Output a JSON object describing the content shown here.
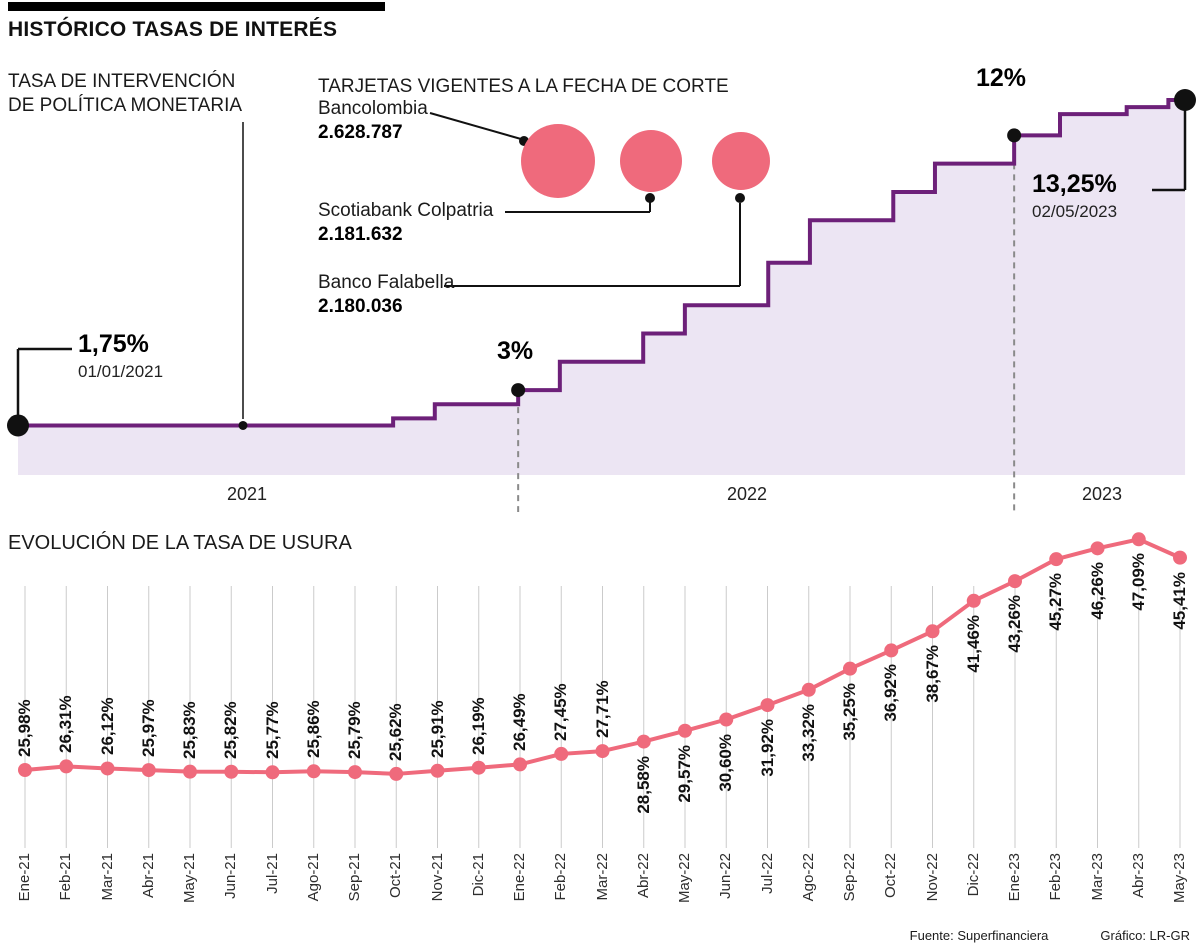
{
  "header": {
    "title": "HISTÓRICO TASAS DE INTERÉS"
  },
  "policy_chart": {
    "title_line1": "TASA DE INTERVENCIÓN",
    "title_line2": "DE POLÍTICA MONETARIA"
  },
  "legend": {
    "title": "TARJETAS VIGENTES A LA FECHA DE CORTE",
    "items": [
      {
        "name": "Bancolombia",
        "value": "2.628.787"
      },
      {
        "name": "Scotiabank Colpatria",
        "value": "2.181.632"
      },
      {
        "name": "Banco Falabella",
        "value": "2.180.036"
      }
    ]
  },
  "usura_chart": {
    "title": "EVOLUCIÓN DE LA TASA DE USURA"
  },
  "footer": {
    "source": "Fuente: Superfinanciera",
    "credit": "Gráfico: LR-GR"
  },
  "chart_data": [
    {
      "type": "area",
      "subtype": "step-line",
      "title": "TASA DE INTERVENCIÓN DE POLÍTICA MONETARIA",
      "unit": "%",
      "ylim": [
        0,
        13.25
      ],
      "x_years": [
        "2021",
        "2022",
        "2023"
      ],
      "steps": [
        {
          "m": 0,
          "rate": 1.75
        },
        {
          "m": 9,
          "rate": 2.0
        },
        {
          "m": 10,
          "rate": 2.5
        },
        {
          "m": 12,
          "rate": 3.0
        },
        {
          "m": 13,
          "rate": 4.0
        },
        {
          "m": 15,
          "rate": 5.0
        },
        {
          "m": 16,
          "rate": 6.0
        },
        {
          "m": 18,
          "rate": 7.5
        },
        {
          "m": 19,
          "rate": 9.0
        },
        {
          "m": 21,
          "rate": 10.0
        },
        {
          "m": 22,
          "rate": 11.0
        },
        {
          "m": 23.9,
          "rate": 12.0
        },
        {
          "m": 25,
          "rate": 12.75
        },
        {
          "m": 26.6,
          "rate": 13.0
        },
        {
          "m": 27.6,
          "rate": 13.25
        }
      ],
      "end_month": 28,
      "annotations": [
        {
          "label": "1,75%",
          "date": "01/01/2021",
          "m": 0,
          "rate": 1.75
        },
        {
          "label": "3%",
          "m": 12,
          "rate": 3.0
        },
        {
          "label": "12%",
          "m": 23.9,
          "rate": 12.0
        },
        {
          "label": "13,25%",
          "date": "02/05/2023",
          "m": 28,
          "rate": 13.25
        }
      ]
    },
    {
      "type": "line",
      "title": "EVOLUCIÓN DE LA TASA DE USURA",
      "categories": [
        "Ene-21",
        "Feb-21",
        "Mar-21",
        "Abr-21",
        "May-21",
        "Jun-21",
        "Jul-21",
        "Ago-21",
        "Sep-21",
        "Oct-21",
        "Nov-21",
        "Dic-21",
        "Ene-22",
        "Feb-22",
        "Mar-22",
        "Abr-22",
        "May-22",
        "Jun-22",
        "Jul-22",
        "Ago-22",
        "Sep-22",
        "Oct-22",
        "Nov-22",
        "Dic-22",
        "Ene-23",
        "Feb-23",
        "Mar-23",
        "Abr-23",
        "May-23"
      ],
      "values": [
        25.98,
        26.31,
        26.12,
        25.97,
        25.83,
        25.82,
        25.77,
        25.86,
        25.79,
        25.62,
        25.91,
        26.19,
        26.49,
        27.45,
        27.71,
        28.58,
        29.57,
        30.6,
        31.92,
        33.32,
        35.25,
        36.92,
        38.67,
        41.46,
        43.26,
        45.27,
        46.26,
        47.09,
        45.41
      ],
      "labels": [
        "25,98%",
        "26,31%",
        "26,12%",
        "25,97%",
        "25,83%",
        "25,82%",
        "25,77%",
        "25,86%",
        "25,79%",
        "25,62%",
        "25,91%",
        "26,19%",
        "26,49%",
        "27,45%",
        "27,71%",
        "28,58%",
        "29,57%",
        "30,60%",
        "31,92%",
        "33,32%",
        "35,25%",
        "36,92%",
        "38,67%",
        "41,46%",
        "43,26%",
        "45,27%",
        "46,26%",
        "47,09%",
        "45,41%"
      ],
      "labels_above_through_index": 14,
      "grid": "vertical"
    }
  ]
}
